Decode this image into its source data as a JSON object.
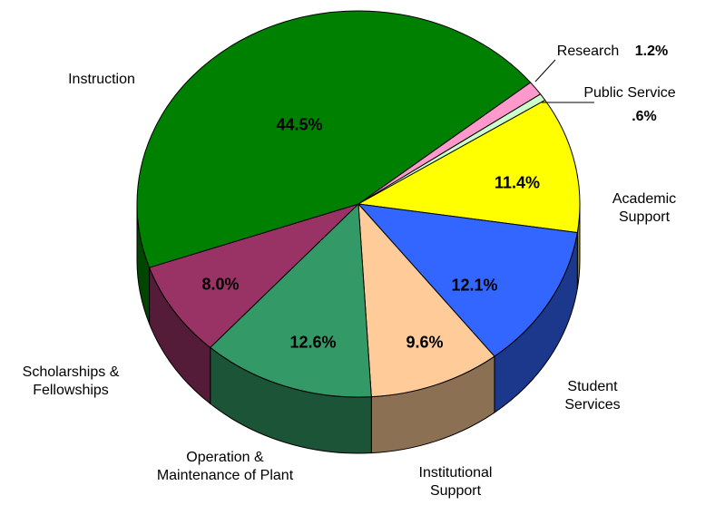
{
  "chart_data": {
    "type": "pie3d",
    "categories": [
      "Research",
      "Public Service",
      "Academic Support",
      "Student Services",
      "Institutional Support",
      "Operation & Maintenance of Plant",
      "Scholarships & Fellowships",
      "Instruction"
    ],
    "values": [
      1.2,
      0.6,
      11.4,
      12.1,
      9.6,
      12.6,
      8.0,
      44.5
    ],
    "value_labels": [
      "1.2%",
      ".6%",
      "11.4%",
      "12.1%",
      "9.6%",
      "12.6%",
      "8.0%",
      "44.5%"
    ],
    "colors": [
      "#ff99cc",
      "#ccffcc",
      "#ffff00",
      "#3366ff",
      "#ffcc99",
      "#339966",
      "#993366",
      "#008000"
    ]
  }
}
